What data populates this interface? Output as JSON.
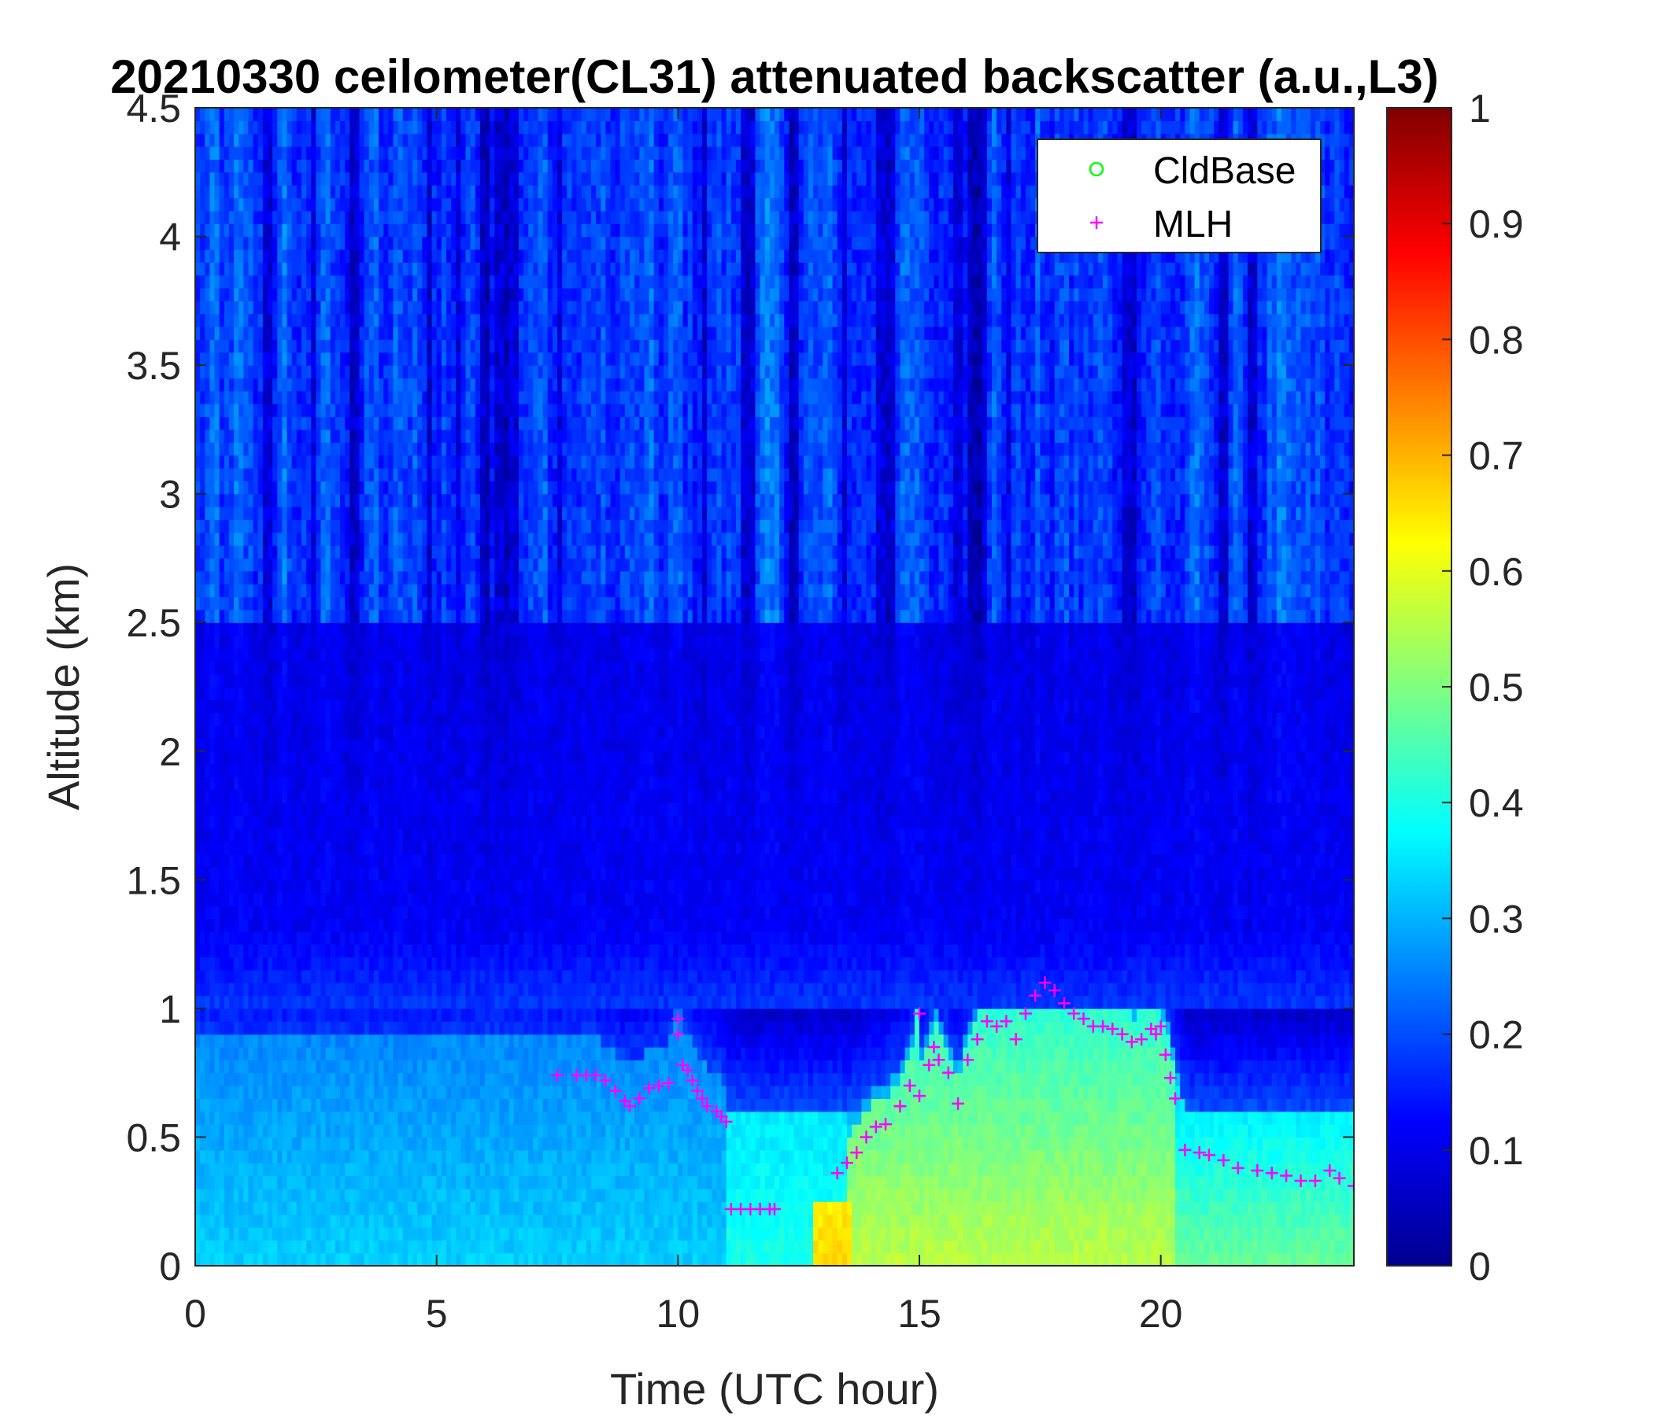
{
  "chart_data": {
    "type": "heatmap",
    "title": "20210330 ceilometer(CL31) attenuated backscatter (a.u.,L3)",
    "xlabel": "Time (UTC hour)",
    "ylabel": "Altitude (km)",
    "xlim": [
      0,
      24
    ],
    "ylim": [
      0,
      4.5
    ],
    "xticks": [
      0,
      5,
      10,
      15,
      20
    ],
    "yticks": [
      0,
      0.5,
      1,
      1.5,
      2,
      2.5,
      3,
      3.5,
      4,
      4.5
    ],
    "colorbar": {
      "colormap": "jet",
      "range": [
        0,
        1
      ],
      "ticks": [
        0,
        0.1,
        0.2,
        0.3,
        0.4,
        0.5,
        0.6,
        0.7,
        0.8,
        0.9,
        1
      ]
    },
    "legend": {
      "position": "top-right",
      "entries": [
        {
          "label": "CldBase",
          "marker": "circle",
          "color": "#00ff00"
        },
        {
          "label": "MLH",
          "marker": "plus",
          "color": "#ff00ff"
        }
      ]
    },
    "backscatter_approx": {
      "description_levels": "",
      "low_layer_0_1km_before_11h": 0.33,
      "low_layer_0_1km_14_to_20h": 0.5,
      "peak_near_13h_surface": 0.7,
      "free_troposphere_1_2_5km": 0.08,
      "upper_streaks_2_5_4_5km": 0.2
    },
    "series": [
      {
        "name": "MLH",
        "marker": "plus",
        "color": "#ff00ff",
        "x": [
          7.5,
          7.9,
          8.1,
          8.3,
          8.5,
          8.7,
          8.9,
          9.0,
          9.2,
          9.4,
          9.6,
          9.8,
          10.0,
          10.0,
          10.1,
          10.2,
          10.3,
          10.4,
          10.5,
          10.6,
          10.8,
          10.9,
          11.0,
          11.1,
          11.3,
          11.5,
          11.7,
          11.9,
          12.0,
          13.3,
          13.5,
          13.7,
          13.9,
          14.1,
          14.3,
          14.6,
          14.8,
          15.0,
          15.0,
          15.2,
          15.3,
          15.4,
          15.6,
          15.8,
          16.0,
          16.2,
          16.4,
          16.6,
          16.8,
          17.0,
          17.2,
          17.4,
          17.6,
          17.8,
          18.0,
          18.2,
          18.4,
          18.6,
          18.8,
          19.0,
          19.2,
          19.4,
          19.6,
          19.8,
          19.9,
          20.0,
          20.1,
          20.2,
          20.3,
          20.5,
          20.8,
          21.0,
          21.3,
          21.6,
          22.0,
          22.3,
          22.6,
          22.9,
          23.2,
          23.5,
          23.7,
          24.0
        ],
        "y": [
          0.74,
          0.74,
          0.74,
          0.74,
          0.72,
          0.68,
          0.64,
          0.62,
          0.65,
          0.69,
          0.7,
          0.71,
          0.96,
          0.9,
          0.78,
          0.76,
          0.72,
          0.68,
          0.65,
          0.62,
          0.6,
          0.58,
          0.56,
          0.22,
          0.22,
          0.22,
          0.22,
          0.22,
          0.22,
          0.36,
          0.4,
          0.44,
          0.5,
          0.54,
          0.55,
          0.62,
          0.7,
          0.98,
          0.66,
          0.78,
          0.85,
          0.8,
          0.75,
          0.63,
          0.8,
          0.88,
          0.95,
          0.93,
          0.95,
          0.88,
          0.98,
          1.05,
          1.1,
          1.07,
          1.02,
          0.98,
          0.96,
          0.93,
          0.93,
          0.92,
          0.9,
          0.87,
          0.88,
          0.92,
          0.9,
          0.93,
          0.82,
          0.73,
          0.65,
          0.45,
          0.44,
          0.43,
          0.41,
          0.38,
          0.37,
          0.36,
          0.35,
          0.33,
          0.33,
          0.37,
          0.34,
          0.31
        ]
      },
      {
        "name": "CldBase",
        "marker": "circle",
        "color": "#00ff00",
        "x": [],
        "y": []
      }
    ]
  }
}
